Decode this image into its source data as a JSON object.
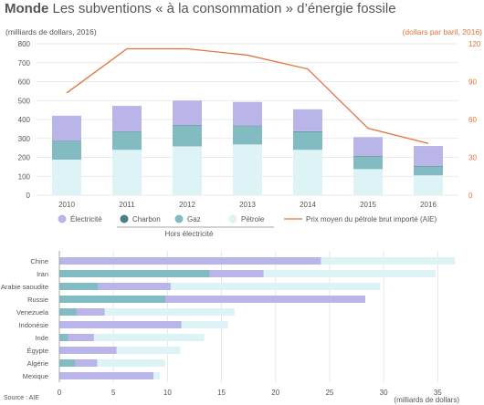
{
  "title": {
    "bold": "Monde",
    "rest": "Les subventions « à la consommation » d’énergie fossile"
  },
  "source": "Source : AIE",
  "colors": {
    "electricite": "#b9b5e8",
    "charbon": "#4e7f80",
    "gaz": "#82bcc2",
    "petrole": "#def3f5",
    "prix": "#e2733d",
    "grid": "#e3e3e3",
    "text": "#555555",
    "axis_right": "#e2733d"
  },
  "chart_data": [
    {
      "type": "bar",
      "stacked": true,
      "unit_left": "(milliards de dollars, 2016)",
      "unit_right": "(dollars par baril, 2016)",
      "categories": [
        "2010",
        "2011",
        "2012",
        "2013",
        "2014",
        "2015",
        "2016"
      ],
      "ylim": [
        0,
        800
      ],
      "yticks": [
        0,
        100,
        200,
        300,
        400,
        500,
        600,
        700,
        800
      ],
      "y2lim": [
        0,
        120
      ],
      "y2ticks": [
        0,
        30,
        60,
        90,
        120
      ],
      "grid": true,
      "series": [
        {
          "name": "Pétrole",
          "key": "petrole",
          "values": [
            188,
            240,
            258,
            268,
            240,
            138,
            105
          ]
        },
        {
          "name": "Gaz",
          "key": "gaz",
          "values": [
            97,
            94,
            108,
            97,
            95,
            66,
            46
          ]
        },
        {
          "name": "Charbon",
          "key": "charbon",
          "values": [
            3,
            3,
            3,
            3,
            3,
            3,
            3
          ]
        },
        {
          "name": "Électricité",
          "key": "electricite",
          "values": [
            132,
            135,
            131,
            125,
            116,
            100,
            106
          ]
        }
      ],
      "line": {
        "name": "Prix moyen du pétrole brut importé (AIE)",
        "key": "prix",
        "axis": "right",
        "values": [
          81,
          116,
          116,
          111,
          100,
          53,
          41
        ]
      },
      "legend": {
        "items": [
          {
            "label": "Électricité",
            "key": "electricite"
          },
          {
            "label": "Charbon",
            "key": "charbon"
          },
          {
            "label": "Gaz",
            "key": "gaz"
          },
          {
            "label": "Pétrole",
            "key": "petrole"
          },
          {
            "label": "Prix moyen du pétrole brut importé (AIE)",
            "key": "prix"
          }
        ],
        "group_label": "Hors électricité",
        "placement": "bottom"
      }
    },
    {
      "type": "bar",
      "orientation": "horizontal",
      "stacked": true,
      "xlabel": "(milliards de dollars)",
      "xlim": [
        0,
        37
      ],
      "xticks": [
        0,
        5,
        10,
        15,
        20,
        25,
        30,
        35
      ],
      "grid": true,
      "categories": [
        "Chine",
        "Iran",
        "Arabie saoudite",
        "Russie",
        "Venezuela",
        "Indonésie",
        "Inde",
        "Égypte",
        "Algérie",
        "Mexique"
      ],
      "series": [
        {
          "name": "Charbon",
          "key": "charbon",
          "values": [
            0,
            0,
            0,
            0,
            0,
            0,
            0,
            0,
            0,
            0
          ]
        },
        {
          "name": "Gaz",
          "key": "gaz",
          "values": [
            0,
            13.9,
            3.6,
            9.8,
            1.6,
            0,
            0.8,
            0,
            1.5,
            0
          ]
        },
        {
          "name": "Électricité",
          "key": "electricite",
          "values": [
            24.2,
            5.0,
            6.7,
            18.5,
            2.6,
            11.3,
            2.4,
            5.3,
            2.0,
            8.7
          ]
        },
        {
          "name": "Pétrole",
          "key": "petrole",
          "values": [
            12.4,
            15.9,
            19.4,
            0,
            12.0,
            4.3,
            10.2,
            5.9,
            6.3,
            0.6
          ]
        }
      ]
    }
  ]
}
